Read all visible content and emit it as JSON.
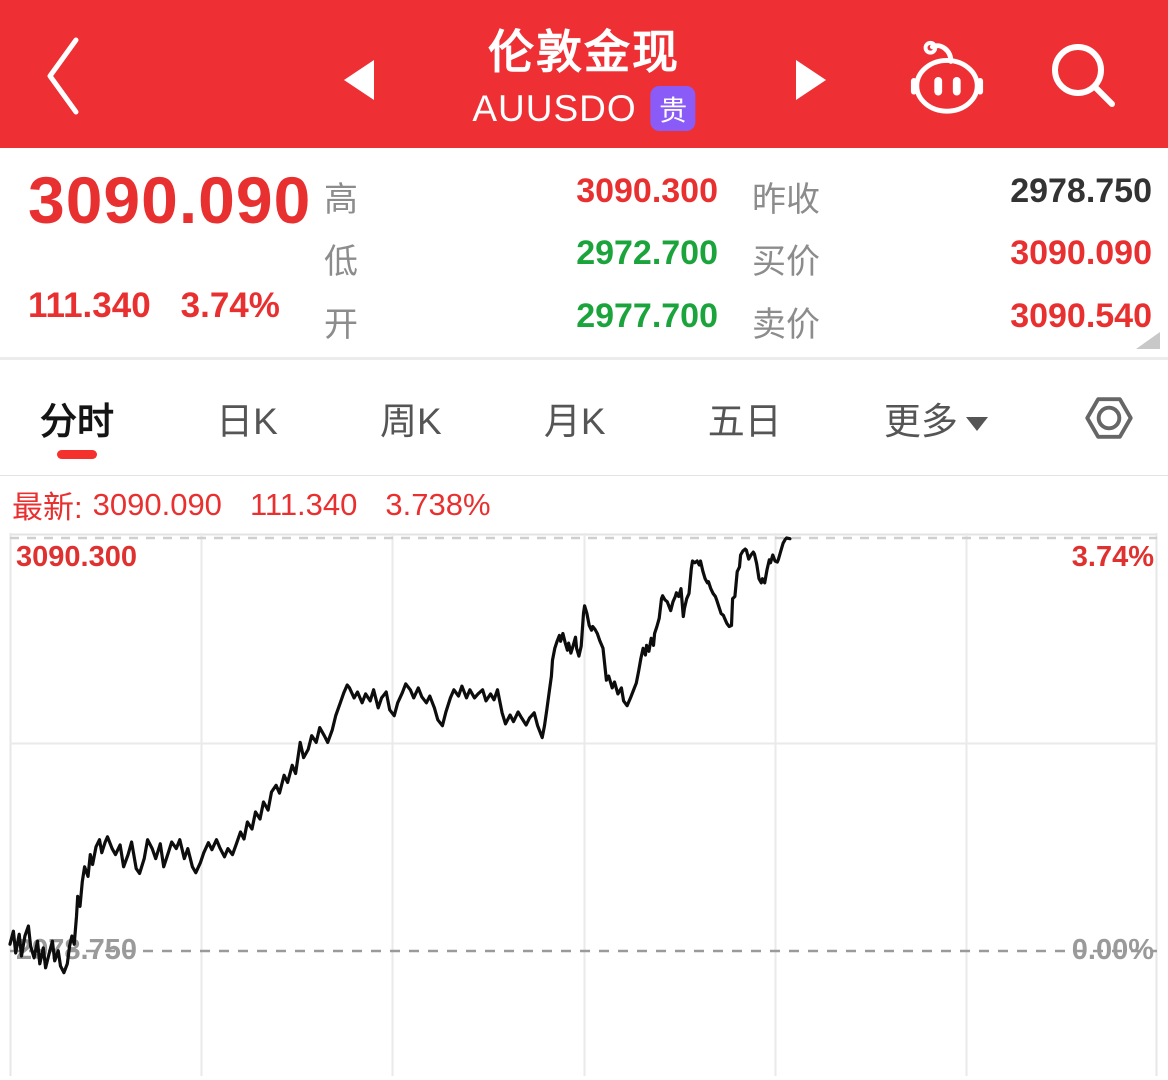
{
  "colors": {
    "header_bg": "#EE2F34",
    "up_red": "#E93030",
    "down_green": "#1BA43B",
    "neutral_dark": "#333333",
    "label_gray": "#8c8c8c",
    "badge_purple": "#8A5BF7",
    "tab_active_underline": "#F5312D",
    "chart_line": "#0d0d0d",
    "grid_line": "#eaeaea",
    "dashed_zero": "#9a9a9a",
    "dashed_high": "#cfcfcf"
  },
  "header": {
    "title": "伦敦金现",
    "subtitle": "AUUSDO",
    "badge": "贵",
    "icons": [
      "back-chevron",
      "prev-triangle",
      "next-triangle",
      "robot",
      "search"
    ]
  },
  "quote": {
    "price": "3090.090",
    "change": "111.340",
    "change_pct": "3.74%",
    "mid_fields": [
      {
        "label": "高",
        "value": "3090.300",
        "color": "red"
      },
      {
        "label": "低",
        "value": "2972.700",
        "color": "green"
      },
      {
        "label": "开",
        "value": "2977.700",
        "color": "green"
      }
    ],
    "right_fields": [
      {
        "label": "昨收",
        "value": "2978.750",
        "color": "dark"
      },
      {
        "label": "买价",
        "value": "3090.090",
        "color": "red"
      },
      {
        "label": "卖价",
        "value": "3090.540",
        "color": "red"
      }
    ]
  },
  "tabs": {
    "items": [
      {
        "label": "分时",
        "active": true
      },
      {
        "label": "日K",
        "active": false
      },
      {
        "label": "周K",
        "active": false
      },
      {
        "label": "月K",
        "active": false
      },
      {
        "label": "五日",
        "active": false
      },
      {
        "label": "更多",
        "active": false,
        "has_caret": true
      }
    ],
    "settings_icon": "hex-nut-settings"
  },
  "latest_bar": {
    "prefix": "最新:",
    "price": "3090.090",
    "change": "111.340",
    "pct": "3.738%"
  },
  "chart_data": {
    "type": "line",
    "description": "Intraday (minute) price line of London spot gold AUUSDO, session ~68% complete",
    "price_high": 3090.3,
    "prev_close": 2978.75,
    "price_low": 2972.7,
    "pct_high": 3.74,
    "pct_zero": 0.0,
    "labels": {
      "high_price": "3090.300",
      "high_pct": "3.74%",
      "prev_close": "2978.750",
      "zero_pct": "0.00%"
    },
    "grid": {
      "vertical_divisions": 6,
      "horizontal_mid_line": true,
      "dashed_high_line": true,
      "dashed_prev_close_line": true
    },
    "series": [
      {
        "name": "price",
        "points": [
          [
            0.0,
            2980.6
          ],
          [
            0.003,
            2984.1
          ],
          [
            0.005,
            2978.2
          ],
          [
            0.008,
            2983.3
          ],
          [
            0.01,
            2977.4
          ],
          [
            0.013,
            2982.8
          ],
          [
            0.016,
            2985.5
          ],
          [
            0.018,
            2980.1
          ],
          [
            0.021,
            2976.9
          ],
          [
            0.024,
            2981.4
          ],
          [
            0.026,
            2975.3
          ],
          [
            0.029,
            2979.6
          ],
          [
            0.031,
            2974.2
          ],
          [
            0.034,
            2977.9
          ],
          [
            0.037,
            2981.4
          ],
          [
            0.039,
            2976.1
          ],
          [
            0.042,
            2978.8
          ],
          [
            0.044,
            2974.7
          ],
          [
            0.047,
            2972.9
          ],
          [
            0.05,
            2975.3
          ],
          [
            0.052,
            2980.1
          ],
          [
            0.054,
            2982.8
          ],
          [
            0.056,
            2980.6
          ],
          [
            0.058,
            2988.1
          ],
          [
            0.059,
            2993.5
          ],
          [
            0.061,
            2990.8
          ],
          [
            0.063,
            2997.5
          ],
          [
            0.065,
            3001.5
          ],
          [
            0.068,
            2998.9
          ],
          [
            0.07,
            3004.8
          ],
          [
            0.072,
            3002.1
          ],
          [
            0.075,
            3006.9
          ],
          [
            0.078,
            3008.8
          ],
          [
            0.08,
            3005.3
          ],
          [
            0.083,
            3008.2
          ],
          [
            0.085,
            3009.6
          ],
          [
            0.089,
            3006.4
          ],
          [
            0.092,
            3004.8
          ],
          [
            0.096,
            3007.4
          ],
          [
            0.099,
            3001.5
          ],
          [
            0.103,
            3004.8
          ],
          [
            0.106,
            3008.2
          ],
          [
            0.11,
            3001.0
          ],
          [
            0.113,
            2999.7
          ],
          [
            0.117,
            3003.7
          ],
          [
            0.12,
            3008.8
          ],
          [
            0.124,
            3006.4
          ],
          [
            0.127,
            3003.7
          ],
          [
            0.131,
            3007.7
          ],
          [
            0.134,
            3001.5
          ],
          [
            0.138,
            3005.3
          ],
          [
            0.141,
            3008.2
          ],
          [
            0.145,
            3006.4
          ],
          [
            0.148,
            3008.8
          ],
          [
            0.152,
            3003.7
          ],
          [
            0.155,
            3006.4
          ],
          [
            0.159,
            3001.5
          ],
          [
            0.162,
            2999.9
          ],
          [
            0.166,
            3002.6
          ],
          [
            0.169,
            3005.3
          ],
          [
            0.173,
            3008.0
          ],
          [
            0.176,
            3006.1
          ],
          [
            0.18,
            3008.8
          ],
          [
            0.183,
            3006.6
          ],
          [
            0.187,
            3004.2
          ],
          [
            0.19,
            3006.4
          ],
          [
            0.194,
            3004.8
          ],
          [
            0.197,
            3007.4
          ],
          [
            0.201,
            3010.9
          ],
          [
            0.204,
            3009.0
          ],
          [
            0.207,
            3013.6
          ],
          [
            0.211,
            3011.7
          ],
          [
            0.214,
            3016.3
          ],
          [
            0.218,
            3014.4
          ],
          [
            0.221,
            3019.0
          ],
          [
            0.225,
            3016.8
          ],
          [
            0.228,
            3021.7
          ],
          [
            0.232,
            3023.5
          ],
          [
            0.235,
            3021.4
          ],
          [
            0.239,
            3026.2
          ],
          [
            0.242,
            3024.3
          ],
          [
            0.246,
            3028.9
          ],
          [
            0.249,
            3026.7
          ],
          [
            0.253,
            3035.1
          ],
          [
            0.256,
            3031.0
          ],
          [
            0.26,
            3033.2
          ],
          [
            0.263,
            3036.9
          ],
          [
            0.267,
            3035.1
          ],
          [
            0.27,
            3039.1
          ],
          [
            0.274,
            3036.9
          ],
          [
            0.277,
            3035.1
          ],
          [
            0.281,
            3038.5
          ],
          [
            0.284,
            3042.3
          ],
          [
            0.288,
            3045.8
          ],
          [
            0.291,
            3048.5
          ],
          [
            0.294,
            3050.6
          ],
          [
            0.296,
            3049.8
          ],
          [
            0.3,
            3047.1
          ],
          [
            0.303,
            3048.7
          ],
          [
            0.307,
            3045.8
          ],
          [
            0.31,
            3048.2
          ],
          [
            0.314,
            3046.3
          ],
          [
            0.317,
            3049.3
          ],
          [
            0.321,
            3044.4
          ],
          [
            0.324,
            3047.1
          ],
          [
            0.328,
            3048.7
          ],
          [
            0.331,
            3043.9
          ],
          [
            0.335,
            3042.3
          ],
          [
            0.338,
            3045.8
          ],
          [
            0.342,
            3048.5
          ],
          [
            0.345,
            3050.9
          ],
          [
            0.349,
            3049.3
          ],
          [
            0.352,
            3047.1
          ],
          [
            0.356,
            3049.8
          ],
          [
            0.359,
            3047.4
          ],
          [
            0.363,
            3045.8
          ],
          [
            0.366,
            3047.6
          ],
          [
            0.37,
            3044.4
          ],
          [
            0.373,
            3041.2
          ],
          [
            0.377,
            3039.6
          ],
          [
            0.38,
            3043.3
          ],
          [
            0.384,
            3047.1
          ],
          [
            0.387,
            3049.3
          ],
          [
            0.391,
            3047.6
          ],
          [
            0.394,
            3050.3
          ],
          [
            0.398,
            3047.1
          ],
          [
            0.401,
            3049.3
          ],
          [
            0.405,
            3047.1
          ],
          [
            0.408,
            3048.2
          ],
          [
            0.412,
            3049.3
          ],
          [
            0.415,
            3046.3
          ],
          [
            0.419,
            3048.2
          ],
          [
            0.422,
            3046.6
          ],
          [
            0.425,
            3049.3
          ],
          [
            0.429,
            3043.1
          ],
          [
            0.432,
            3040.1
          ],
          [
            0.436,
            3042.5
          ],
          [
            0.439,
            3040.7
          ],
          [
            0.443,
            3043.3
          ],
          [
            0.446,
            3041.7
          ],
          [
            0.45,
            3039.8
          ],
          [
            0.453,
            3041.7
          ],
          [
            0.457,
            3043.1
          ],
          [
            0.46,
            3039.6
          ],
          [
            0.464,
            3036.4
          ],
          [
            0.466,
            3039.6
          ],
          [
            0.468,
            3043.9
          ],
          [
            0.47,
            3048.5
          ],
          [
            0.472,
            3053.0
          ],
          [
            0.473,
            3057.3
          ],
          [
            0.475,
            3060.5
          ],
          [
            0.477,
            3062.4
          ],
          [
            0.479,
            3064.0
          ],
          [
            0.48,
            3062.4
          ],
          [
            0.482,
            3064.5
          ],
          [
            0.484,
            3062.1
          ],
          [
            0.486,
            3060.0
          ],
          [
            0.487,
            3061.9
          ],
          [
            0.489,
            3059.2
          ],
          [
            0.491,
            3061.3
          ],
          [
            0.493,
            3063.5
          ],
          [
            0.494,
            3060.5
          ],
          [
            0.496,
            3058.4
          ],
          [
            0.498,
            3061.1
          ],
          [
            0.5,
            3069.9
          ],
          [
            0.501,
            3072.0
          ],
          [
            0.503,
            3069.9
          ],
          [
            0.505,
            3066.7
          ],
          [
            0.507,
            3065.4
          ],
          [
            0.508,
            3066.4
          ],
          [
            0.51,
            3065.6
          ],
          [
            0.512,
            3064.5
          ],
          [
            0.514,
            3062.7
          ],
          [
            0.517,
            3060.5
          ],
          [
            0.52,
            3051.9
          ],
          [
            0.522,
            3053.0
          ],
          [
            0.525,
            3049.8
          ],
          [
            0.527,
            3051.4
          ],
          [
            0.53,
            3048.2
          ],
          [
            0.533,
            3049.8
          ],
          [
            0.535,
            3046.3
          ],
          [
            0.538,
            3045.0
          ],
          [
            0.541,
            3047.1
          ],
          [
            0.543,
            3048.7
          ],
          [
            0.546,
            3051.1
          ],
          [
            0.548,
            3054.3
          ],
          [
            0.55,
            3057.8
          ],
          [
            0.552,
            3060.5
          ],
          [
            0.554,
            3058.7
          ],
          [
            0.555,
            3061.3
          ],
          [
            0.557,
            3059.7
          ],
          [
            0.559,
            3063.2
          ],
          [
            0.561,
            3061.3
          ],
          [
            0.562,
            3064.5
          ],
          [
            0.564,
            3066.4
          ],
          [
            0.566,
            3068.6
          ],
          [
            0.568,
            3073.9
          ],
          [
            0.569,
            3074.7
          ],
          [
            0.571,
            3073.6
          ],
          [
            0.573,
            3073.1
          ],
          [
            0.575,
            3071.5
          ],
          [
            0.576,
            3070.7
          ],
          [
            0.578,
            3073.1
          ],
          [
            0.58,
            3074.5
          ],
          [
            0.581,
            3075.5
          ],
          [
            0.583,
            3074.5
          ],
          [
            0.585,
            3076.6
          ],
          [
            0.587,
            3069.1
          ],
          [
            0.588,
            3071.2
          ],
          [
            0.59,
            3073.9
          ],
          [
            0.592,
            3075.3
          ],
          [
            0.594,
            3082.0
          ],
          [
            0.595,
            3084.1
          ],
          [
            0.597,
            3083.6
          ],
          [
            0.599,
            3084.1
          ],
          [
            0.601,
            3083.0
          ],
          [
            0.602,
            3084.1
          ],
          [
            0.604,
            3081.4
          ],
          [
            0.606,
            3079.3
          ],
          [
            0.608,
            3078.2
          ],
          [
            0.609,
            3078.5
          ],
          [
            0.611,
            3076.6
          ],
          [
            0.613,
            3075.3
          ],
          [
            0.615,
            3074.5
          ],
          [
            0.616,
            3073.6
          ],
          [
            0.618,
            3071.8
          ],
          [
            0.62,
            3069.9
          ],
          [
            0.622,
            3069.4
          ],
          [
            0.623,
            3068.6
          ],
          [
            0.625,
            3067.2
          ],
          [
            0.627,
            3066.4
          ],
          [
            0.629,
            3066.7
          ],
          [
            0.63,
            3073.9
          ],
          [
            0.632,
            3074.5
          ],
          [
            0.634,
            3081.2
          ],
          [
            0.636,
            3082.5
          ],
          [
            0.637,
            3085.7
          ],
          [
            0.639,
            3086.8
          ],
          [
            0.641,
            3087.3
          ],
          [
            0.642,
            3087.0
          ],
          [
            0.644,
            3084.6
          ],
          [
            0.646,
            3085.7
          ],
          [
            0.648,
            3086.5
          ],
          [
            0.649,
            3086.0
          ],
          [
            0.651,
            3083.3
          ],
          [
            0.653,
            3079.3
          ],
          [
            0.655,
            3078.2
          ],
          [
            0.656,
            3079.3
          ],
          [
            0.658,
            3078.2
          ],
          [
            0.66,
            3081.7
          ],
          [
            0.662,
            3084.4
          ],
          [
            0.663,
            3083.6
          ],
          [
            0.665,
            3085.7
          ],
          [
            0.667,
            3084.1
          ],
          [
            0.669,
            3083.8
          ],
          [
            0.67,
            3084.6
          ],
          [
            0.672,
            3086.8
          ],
          [
            0.674,
            3088.9
          ],
          [
            0.676,
            3090.0
          ],
          [
            0.677,
            3090.3
          ],
          [
            0.68,
            3090.1
          ]
        ]
      }
    ]
  }
}
